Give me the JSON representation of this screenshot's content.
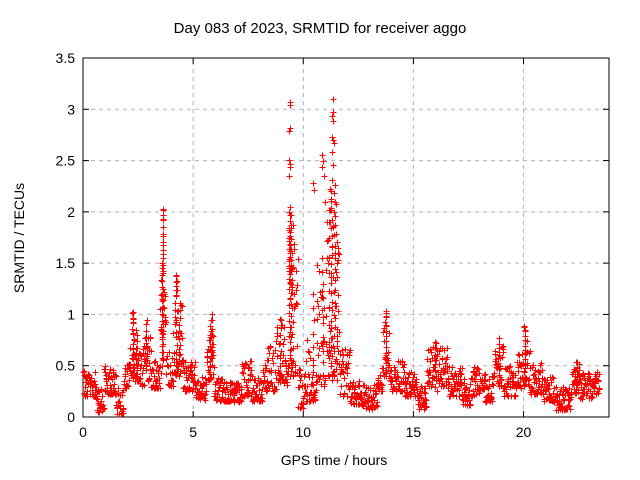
{
  "chart_data": {
    "type": "scatter",
    "title": "Day 083 of 2023, SRMTID for receiver aggo",
    "xlabel": "GPS time / hours",
    "ylabel": "SRMTID / TECUs",
    "xlim": [
      0,
      23.88
    ],
    "ylim": [
      0,
      3.5
    ],
    "xticks": [
      0,
      5,
      10,
      15,
      20
    ],
    "yticks": [
      0,
      0.5,
      1,
      1.5,
      2,
      2.5,
      3,
      3.5
    ],
    "grid": {
      "on": true,
      "style": "dashed",
      "color": "#b0b0b0"
    },
    "legend": "none",
    "marker": {
      "shape": "plus",
      "color": "#ff0000",
      "size": 7,
      "stroke": 1
    },
    "border_color": "#000000",
    "seed": 20230083,
    "baseline_segments": [
      [
        0.0,
        0.6,
        0.2,
        0.45,
        42
      ],
      [
        0.6,
        0.95,
        0.05,
        0.28,
        25
      ],
      [
        0.95,
        1.5,
        0.22,
        0.5,
        39
      ],
      [
        1.5,
        1.85,
        0.03,
        0.3,
        25
      ],
      [
        1.85,
        2.15,
        0.28,
        0.52,
        21
      ],
      [
        2.15,
        2.5,
        0.35,
        0.85,
        25
      ],
      [
        2.5,
        2.8,
        0.3,
        0.7,
        21
      ],
      [
        2.8,
        3.1,
        0.35,
        0.9,
        21
      ],
      [
        3.1,
        3.5,
        0.28,
        0.55,
        28
      ],
      [
        3.5,
        3.8,
        0.4,
        1.3,
        21
      ],
      [
        3.8,
        4.1,
        0.3,
        0.65,
        21
      ],
      [
        4.1,
        4.55,
        0.4,
        1.1,
        32
      ],
      [
        4.55,
        5.1,
        0.25,
        0.55,
        39
      ],
      [
        5.1,
        5.6,
        0.17,
        0.4,
        35
      ],
      [
        5.6,
        5.95,
        0.35,
        0.85,
        25
      ],
      [
        5.95,
        6.6,
        0.15,
        0.4,
        46
      ],
      [
        6.6,
        7.2,
        0.15,
        0.35,
        42
      ],
      [
        7.2,
        7.65,
        0.2,
        0.55,
        32
      ],
      [
        7.65,
        8.15,
        0.15,
        0.4,
        35
      ],
      [
        8.15,
        8.75,
        0.25,
        0.7,
        42
      ],
      [
        8.75,
        9.15,
        0.3,
        0.9,
        28
      ],
      [
        9.15,
        9.3,
        0.3,
        0.6,
        11
      ],
      [
        9.3,
        9.75,
        0.4,
        1.9,
        34
      ],
      [
        9.75,
        10.1,
        0.08,
        0.5,
        25
      ],
      [
        10.1,
        10.6,
        0.15,
        0.75,
        35
      ],
      [
        10.6,
        11.0,
        0.3,
        1.3,
        28
      ],
      [
        11.0,
        11.65,
        0.35,
        2.1,
        48
      ],
      [
        11.65,
        12.1,
        0.2,
        0.7,
        32
      ],
      [
        12.1,
        12.7,
        0.12,
        0.35,
        42
      ],
      [
        12.7,
        13.35,
        0.08,
        0.32,
        46
      ],
      [
        13.35,
        13.6,
        0.25,
        0.5,
        18
      ],
      [
        13.6,
        13.9,
        0.4,
        0.95,
        21
      ],
      [
        13.9,
        14.6,
        0.25,
        0.55,
        49
      ],
      [
        14.6,
        15.15,
        0.2,
        0.45,
        39
      ],
      [
        15.15,
        15.6,
        0.08,
        0.32,
        32
      ],
      [
        15.6,
        16.2,
        0.25,
        0.7,
        42
      ],
      [
        16.2,
        16.55,
        0.3,
        0.68,
        25
      ],
      [
        16.55,
        17.2,
        0.2,
        0.5,
        46
      ],
      [
        17.2,
        17.6,
        0.12,
        0.38,
        28
      ],
      [
        17.6,
        18.25,
        0.2,
        0.52,
        46
      ],
      [
        18.25,
        18.65,
        0.15,
        0.42,
        28
      ],
      [
        18.65,
        19.1,
        0.28,
        0.7,
        32
      ],
      [
        19.1,
        19.65,
        0.2,
        0.5,
        39
      ],
      [
        19.65,
        20.0,
        0.28,
        0.62,
        25
      ],
      [
        20.0,
        20.3,
        0.3,
        0.75,
        21
      ],
      [
        20.3,
        20.9,
        0.22,
        0.55,
        42
      ],
      [
        20.9,
        21.45,
        0.15,
        0.4,
        39
      ],
      [
        21.45,
        22.15,
        0.07,
        0.3,
        49
      ],
      [
        22.15,
        22.55,
        0.22,
        0.55,
        28
      ],
      [
        22.55,
        23.1,
        0.18,
        0.45,
        39
      ],
      [
        23.1,
        23.45,
        0.22,
        0.45,
        25
      ]
    ],
    "spike_columns": [
      [
        2.27,
        0.45,
        1.02,
        12,
        0.03
      ],
      [
        2.42,
        0.4,
        0.85,
        9,
        0.03
      ],
      [
        2.88,
        0.45,
        0.95,
        10,
        0.03
      ],
      [
        3.58,
        0.5,
        1.45,
        16,
        0.02
      ],
      [
        3.62,
        0.55,
        2.02,
        18,
        0.02
      ],
      [
        4.22,
        0.5,
        1.38,
        14,
        0.03
      ],
      [
        4.38,
        0.45,
        1.12,
        10,
        0.03
      ],
      [
        5.78,
        0.38,
        0.95,
        12,
        0.03
      ],
      [
        5.86,
        0.5,
        1.01,
        8,
        0.02
      ],
      [
        8.95,
        0.35,
        0.95,
        9,
        0.03
      ],
      [
        9.38,
        0.5,
        2.05,
        22,
        0.02
      ],
      [
        9.44,
        0.45,
        1.85,
        14,
        0.02
      ],
      [
        9.52,
        0.4,
        1.6,
        10,
        0.03
      ],
      [
        10.45,
        0.3,
        1.2,
        8,
        0.02
      ],
      [
        10.88,
        0.4,
        1.55,
        10,
        0.03
      ],
      [
        11.28,
        0.5,
        2.2,
        20,
        0.02
      ],
      [
        11.42,
        0.45,
        2.1,
        16,
        0.02
      ],
      [
        11.15,
        0.4,
        1.9,
        10,
        0.03
      ],
      [
        11.55,
        0.35,
        1.7,
        9,
        0.03
      ],
      [
        13.75,
        0.4,
        1.02,
        12,
        0.03
      ],
      [
        16.0,
        0.35,
        0.72,
        8,
        0.03
      ],
      [
        18.88,
        0.35,
        0.76,
        8,
        0.02
      ],
      [
        20.06,
        0.35,
        0.88,
        13,
        0.03
      ],
      [
        22.42,
        0.28,
        0.53,
        8,
        0.03
      ]
    ],
    "extra_points": [
      [
        3.62,
        2.02
      ],
      [
        3.63,
        1.97
      ],
      [
        3.61,
        1.92
      ],
      [
        3.63,
        1.85
      ],
      [
        3.62,
        1.78
      ],
      [
        3.64,
        1.71
      ],
      [
        3.61,
        1.63
      ],
      [
        3.63,
        1.55
      ],
      [
        3.62,
        1.48
      ],
      [
        3.64,
        1.4
      ],
      [
        2.27,
        1.02
      ],
      [
        2.28,
        0.97
      ],
      [
        2.26,
        0.92
      ],
      [
        4.22,
        1.38
      ],
      [
        4.25,
        1.33
      ],
      [
        4.2,
        1.28
      ],
      [
        4.27,
        1.24
      ],
      [
        4.23,
        1.19
      ],
      [
        8.97,
        0.95
      ],
      [
        8.99,
        0.9
      ],
      [
        9.38,
        3.07
      ],
      [
        9.41,
        3.04
      ],
      [
        9.39,
        2.82
      ],
      [
        9.37,
        2.79
      ],
      [
        9.36,
        2.51
      ],
      [
        9.39,
        2.47
      ],
      [
        9.41,
        2.44
      ],
      [
        9.37,
        2.35
      ],
      [
        9.4,
        2.05
      ],
      [
        9.35,
        2.0
      ],
      [
        9.43,
        1.97
      ],
      [
        9.36,
        1.84
      ],
      [
        9.39,
        1.8
      ],
      [
        9.42,
        1.76
      ],
      [
        9.37,
        1.72
      ],
      [
        9.4,
        1.68
      ],
      [
        9.35,
        1.64
      ],
      [
        9.38,
        1.6
      ],
      [
        9.41,
        1.56
      ],
      [
        9.36,
        1.52
      ],
      [
        9.44,
        1.48
      ],
      [
        9.33,
        1.42
      ],
      [
        9.46,
        1.3
      ],
      [
        10.44,
        2.28
      ],
      [
        10.48,
        2.21
      ],
      [
        10.86,
        2.55
      ],
      [
        10.9,
        2.5
      ],
      [
        10.84,
        2.44
      ],
      [
        10.92,
        2.35
      ],
      [
        10.62,
        1.48
      ],
      [
        10.7,
        1.42
      ],
      [
        11.33,
        3.1
      ],
      [
        11.35,
        2.97
      ],
      [
        11.31,
        2.93
      ],
      [
        11.37,
        2.89
      ],
      [
        11.3,
        2.73
      ],
      [
        11.34,
        2.7
      ],
      [
        11.38,
        2.67
      ],
      [
        11.31,
        2.58
      ],
      [
        11.35,
        2.46
      ],
      [
        11.3,
        2.31
      ],
      [
        11.46,
        2.26
      ],
      [
        11.2,
        2.22
      ],
      [
        11.4,
        2.18
      ],
      [
        11.25,
        2.13
      ],
      [
        11.5,
        2.08
      ],
      [
        11.15,
        2.02
      ],
      [
        11.44,
        1.96
      ],
      [
        11.22,
        1.9
      ],
      [
        11.36,
        1.85
      ],
      [
        11.48,
        1.78
      ],
      [
        11.1,
        1.72
      ],
      [
        11.3,
        1.66
      ],
      [
        11.42,
        1.6
      ],
      [
        11.18,
        1.55
      ],
      [
        11.52,
        1.5
      ],
      [
        13.74,
        1.03
      ],
      [
        13.76,
        0.98
      ],
      [
        13.73,
        0.93
      ],
      [
        15.97,
        0.73
      ],
      [
        18.88,
        0.77
      ],
      [
        20.04,
        0.89
      ],
      [
        20.06,
        0.85
      ],
      [
        22.4,
        0.54
      ]
    ]
  }
}
